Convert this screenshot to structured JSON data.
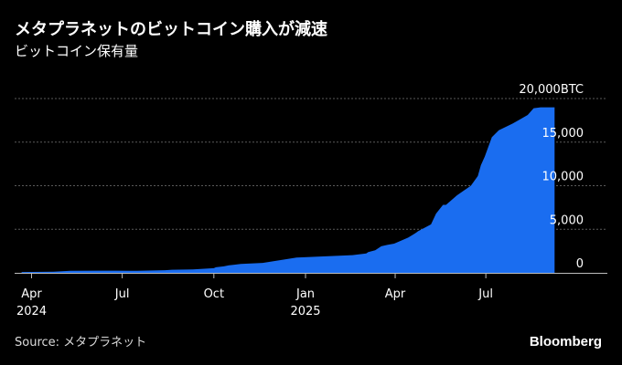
{
  "title": "メタプラネットのビットコイン購入が減速",
  "subtitle": "ビットコイン保有量",
  "source": "Source: メタプラネット",
  "brand": "Bloomberg",
  "colors": {
    "background": "#000000",
    "area": "#1a6df0",
    "gridline": "#5a5a5a",
    "axis": "#bdbdbd",
    "text": "#ffffff"
  },
  "chart_data": {
    "type": "area",
    "title": "メタプラネットのビットコイン購入が減速",
    "subtitle": "ビットコイン保有量",
    "xlabel": "",
    "ylabel": "",
    "y_unit": "BTC",
    "xlim": [
      "2024-03-15",
      "2025-10-31"
    ],
    "ylim": [
      0,
      20000
    ],
    "grid": true,
    "y_ticks": [
      {
        "value": 20000,
        "label": "20,000BTC"
      },
      {
        "value": 15000,
        "label": "15,000"
      },
      {
        "value": 10000,
        "label": "10,000"
      },
      {
        "value": 5000,
        "label": "5,000"
      },
      {
        "value": 0,
        "label": "0"
      }
    ],
    "x_ticks": [
      {
        "date": "2024-04-01",
        "label": "Apr",
        "year": "2024"
      },
      {
        "date": "2024-07-01",
        "label": "Jul",
        "year": ""
      },
      {
        "date": "2024-10-01",
        "label": "Oct",
        "year": ""
      },
      {
        "date": "2025-01-01",
        "label": "Jan",
        "year": "2025"
      },
      {
        "date": "2025-04-01",
        "label": "Apr",
        "year": ""
      },
      {
        "date": "2025-07-01",
        "label": "Jul",
        "year": ""
      }
    ],
    "series": [
      {
        "x": [
          "2024-03-22",
          "2024-04-23",
          "2024-05-10",
          "2024-06-11",
          "2024-07-08",
          "2024-07-16",
          "2024-08-13",
          "2024-08-20",
          "2024-09-10",
          "2024-10-01",
          "2024-10-03",
          "2024-10-11",
          "2024-10-16",
          "2024-10-28",
          "2024-11-19",
          "2024-12-23",
          "2025-02-17",
          "2025-03-03",
          "2025-03-05",
          "2025-03-12",
          "2025-03-18",
          "2025-03-24",
          "2025-03-31",
          "2025-04-14",
          "2025-04-21",
          "2025-04-24",
          "2025-05-07",
          "2025-05-12",
          "2025-05-19",
          "2025-05-22",
          "2025-06-02",
          "2025-06-16",
          "2025-06-23",
          "2025-06-26",
          "2025-06-30",
          "2025-07-07",
          "2025-07-14",
          "2025-07-28",
          "2025-08-04",
          "2025-08-12",
          "2025-08-18",
          "2025-08-25",
          "2025-09-01",
          "2025-09-08"
        ],
        "values": [
          97,
          141,
          226,
          250,
          246,
          246,
          300,
          360,
          399,
          530,
          640,
          748,
          862,
          1018,
          1142,
          1762,
          2031,
          2235,
          2391,
          2596,
          3050,
          3200,
          3350,
          4046,
          4525,
          4775,
          5555,
          6796,
          7800,
          7800,
          8888,
          10000,
          11111,
          12345,
          13350,
          15555,
          16352,
          17132,
          17595,
          18113,
          18888,
          18991,
          18991,
          18991
        ]
      }
    ]
  }
}
